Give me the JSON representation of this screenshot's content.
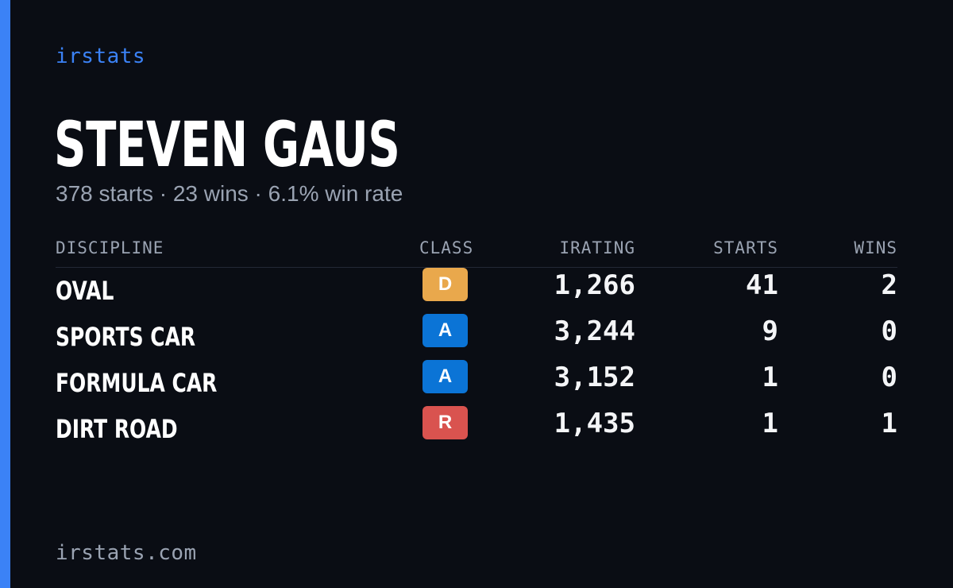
{
  "brand": "irstats",
  "driver": {
    "name": "STEVEN GAUS",
    "summary": "378 starts · 23 wins · 6.1% win rate"
  },
  "table": {
    "headers": {
      "discipline": "DISCIPLINE",
      "class": "CLASS",
      "irating": "IRATING",
      "starts": "STARTS",
      "wins": "WINS"
    },
    "rows": [
      {
        "discipline": "OVAL",
        "class": "D",
        "class_color": "#e9a84c",
        "irating": "1,266",
        "starts": "41",
        "wins": "2"
      },
      {
        "discipline": "SPORTS CAR",
        "class": "A",
        "class_color": "#0b74d6",
        "irating": "3,244",
        "starts": "9",
        "wins": "0"
      },
      {
        "discipline": "FORMULA CAR",
        "class": "A",
        "class_color": "#0b74d6",
        "irating": "3,152",
        "starts": "1",
        "wins": "0"
      },
      {
        "discipline": "DIRT ROAD",
        "class": "R",
        "class_color": "#d9534f",
        "irating": "1,435",
        "starts": "1",
        "wins": "1"
      }
    ]
  },
  "footer": {
    "url": "irstats.com"
  },
  "colors": {
    "background": "#0a0d14",
    "accent": "#3b82f6",
    "muted_text": "#9aa3b2"
  }
}
